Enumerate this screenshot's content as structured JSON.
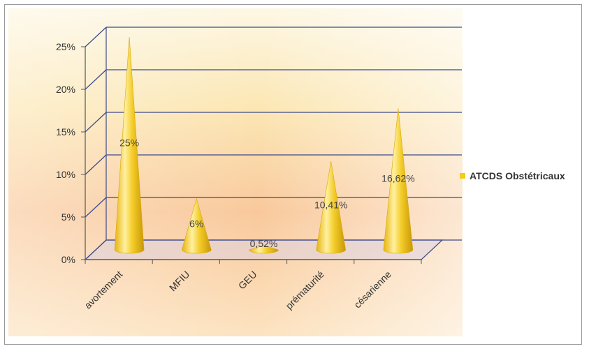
{
  "chart_data": {
    "type": "bar",
    "bar_shape": "cone",
    "categories": [
      "avortement",
      "MFIU",
      "GEU",
      "prématurité",
      "césarienne"
    ],
    "series": [
      {
        "name": "ATCDS Obstétricaux",
        "values": [
          25,
          6,
          0.52,
          10.41,
          16.62
        ],
        "labels": [
          "25%",
          "6%",
          "0,52%",
          "10,41%",
          "16,62%"
        ]
      }
    ],
    "y_ticks": [
      "0%",
      "5%",
      "10%",
      "15%",
      "20%",
      "25%"
    ],
    "ylim": [
      0,
      25
    ],
    "grid": true,
    "legend_position": "right",
    "colors": {
      "bar_light": "#fff4a0",
      "bar_mid": "#f5d02a",
      "bar_dark": "#c89a06",
      "legend_swatch": "#f2cc1e",
      "grid": "#3b4a8c",
      "background_top": "#fdf6d8",
      "background_bottom": "#f9b78a"
    }
  },
  "legend": {
    "label": "ATCDS Obstétricaux"
  }
}
